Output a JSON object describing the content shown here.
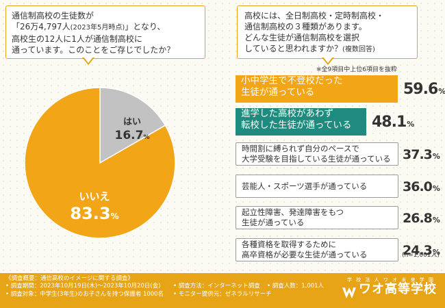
{
  "question1": {
    "lines": [
      "通信制高校の生徒数が",
      "「26万4,797人",
      "(2023年5月時点)",
      "」となり、",
      "高校生の12人に1人が通信制高校に",
      "通っています。このことをご存じでしたか？"
    ]
  },
  "question2": {
    "lines": [
      "高校には、全日制高校・定時制高校・",
      "通信制高校の３種類があります。",
      "どんな生徒が通信制高校を選択",
      "していると思われますか？",
      "(複数回答)"
    ]
  },
  "note_top": "※全9項目中上位6項目を抜粋",
  "sample_size": "(n=1,001人)",
  "pie": {
    "slices": [
      {
        "label": "はい",
        "value": 16.7,
        "value_text": "16.7",
        "unit": "%",
        "color": "#c2c2c2"
      },
      {
        "label": "いいえ",
        "value": 83.3,
        "value_text": "83.3",
        "unit": "%",
        "color": "#f2a516"
      }
    ]
  },
  "chart_data": [
    {
      "type": "pie",
      "categories": [
        "はい",
        "いいえ"
      ],
      "values": [
        16.7,
        83.3
      ]
    },
    {
      "type": "bar",
      "categories": [
        "小中学生で不登校だった生徒が通っている",
        "進学した高校があわず転校した生徒が通っている",
        "時間割に縛られず自分のペースで大学受験を目指している生徒が通っている",
        "芸能人・スポーツ選手が通っている",
        "起立性障害、発達障害をもつ生徒が通っている",
        "各種資格を取得するために高卒資格が必要な生徒が通っている"
      ],
      "values": [
        59.6,
        48.1,
        37.3,
        36.0,
        26.8,
        24.3
      ],
      "ylim": [
        0,
        100
      ]
    }
  ],
  "bars": [
    {
      "lines": [
        "小中学生で不登校だった",
        "生徒が通っている"
      ],
      "value_text": "59.6",
      "unit": "%",
      "color": "#f2a516"
    },
    {
      "lines": [
        "進学した高校があわず",
        "転校した生徒が通っている"
      ],
      "value_text": "48.1",
      "unit": "%",
      "color": "#1f8b7e"
    },
    {
      "lines": [
        "時間割に縛られず自分のペースで",
        "大学受験を目指している生徒が通っている"
      ],
      "value_text": "37.3",
      "unit": "%"
    },
    {
      "lines": [
        "芸能人・スポーツ選手が通っている"
      ],
      "value_text": "36.0",
      "unit": "%"
    },
    {
      "lines": [
        "起立性障害、発達障害をもつ",
        "生徒が通っている"
      ],
      "value_text": "26.8",
      "unit": "%"
    },
    {
      "lines": [
        "各種資格を取得するために",
        "高卒資格が必要な生徒が通っている"
      ],
      "value_text": "24.3",
      "unit": "%"
    }
  ],
  "footer": {
    "survey_title": "《調査概要：通信高校のイメージに関する調査》",
    "period": "• 調査期間：2023年10月19日(木)～2023年10月20日(金)",
    "target": "• 調査対象：中学生(3年生)のお子さんを持つ保護者 1000名",
    "method": "• 調査方法：インターネット調査",
    "provider": "• モニター提供元：ゼネラルリサーチ",
    "count": "• 調査人数：1,001人",
    "logo_sub": "学 校 法 人 ワ オ 未 来 学 園",
    "logo_main": "ワオ高等学校"
  }
}
